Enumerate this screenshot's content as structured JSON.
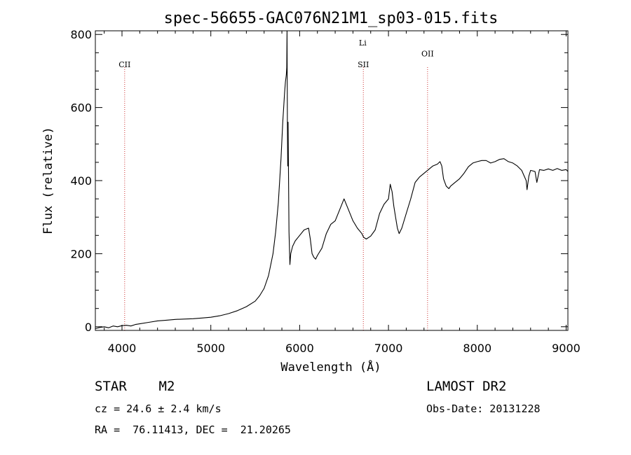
{
  "chart_data": {
    "type": "line",
    "title": "spec-56655-GAC076N21M1_sp03-015.fits",
    "xlabel": "Wavelength (Å)",
    "ylabel": "Flux (relative)",
    "xlim": [
      3700,
      9020
    ],
    "ylim": [
      -10,
      810
    ],
    "xticks": [
      4000,
      5000,
      6000,
      7000,
      8000,
      9000
    ],
    "yticks": [
      0,
      200,
      400,
      600,
      800
    ],
    "grid": false,
    "line_color": "#000000",
    "marker_color": "#cc3333",
    "series": [
      {
        "x": [
          3700,
          3750,
          3800,
          3850,
          3900,
          3950,
          4000,
          4050,
          4100,
          4150,
          4200,
          4300,
          4400,
          4500,
          4600,
          4700,
          4800,
          4900,
          5000,
          5100,
          5200,
          5300,
          5400,
          5500,
          5550,
          5600,
          5650,
          5700,
          5730,
          5760,
          5790,
          5810,
          5830,
          5840,
          5850,
          5855,
          5858,
          5862,
          5866,
          5870,
          5880,
          5890,
          5900,
          5920,
          5950,
          6000,
          6050,
          6100,
          6120,
          6140,
          6160,
          6180,
          6200,
          6250,
          6300,
          6350,
          6400,
          6450,
          6500,
          6550,
          6600,
          6650,
          6700,
          6720,
          6750,
          6800,
          6850,
          6900,
          6950,
          7000,
          7020,
          7040,
          7060,
          7080,
          7100,
          7120,
          7150,
          7200,
          7250,
          7300,
          7350,
          7400,
          7450,
          7500,
          7550,
          7580,
          7600,
          7620,
          7650,
          7680,
          7700,
          7750,
          7800,
          7850,
          7900,
          7950,
          8000,
          8050,
          8100,
          8150,
          8200,
          8250,
          8300,
          8350,
          8400,
          8450,
          8500,
          8550,
          8560,
          8580,
          8600,
          8650,
          8670,
          8700,
          8750,
          8800,
          8850,
          8900,
          8950,
          9000,
          9020
        ],
        "y": [
          -5,
          -2,
          0,
          -3,
          2,
          0,
          3,
          4,
          2,
          6,
          8,
          12,
          16,
          18,
          20,
          21,
          22,
          24,
          26,
          30,
          36,
          44,
          55,
          70,
          85,
          105,
          140,
          200,
          260,
          340,
          460,
          560,
          640,
          670,
          690,
          710,
          810,
          560,
          440,
          560,
          260,
          170,
          200,
          220,
          235,
          250,
          265,
          270,
          240,
          200,
          190,
          185,
          195,
          215,
          255,
          280,
          290,
          320,
          350,
          320,
          290,
          270,
          255,
          245,
          240,
          248,
          265,
          310,
          335,
          350,
          390,
          370,
          330,
          300,
          270,
          255,
          270,
          310,
          350,
          395,
          410,
          420,
          430,
          440,
          445,
          452,
          440,
          405,
          385,
          378,
          385,
          395,
          405,
          420,
          438,
          448,
          452,
          455,
          455,
          448,
          452,
          458,
          460,
          452,
          448,
          440,
          428,
          400,
          375,
          412,
          428,
          425,
          395,
          430,
          428,
          432,
          428,
          433,
          428,
          430,
          425
        ]
      }
    ],
    "annotations": [
      {
        "label": "CII",
        "x": 4030,
        "label_y": 710
      },
      {
        "label": "Li",
        "x": 6710,
        "label_y": 770
      },
      {
        "label": "SII",
        "x": 6717,
        "label_y": 710
      },
      {
        "label": "OII",
        "x": 7440,
        "label_y": 740
      }
    ]
  },
  "info": {
    "class_line": "STAR    M2",
    "survey": "LAMOST DR2",
    "cz": "cz = 24.6 ± 2.4 km/s",
    "obs_date": "Obs-Date: 20131228",
    "coords": "RA =  76.11413, DEC =  21.20265"
  }
}
